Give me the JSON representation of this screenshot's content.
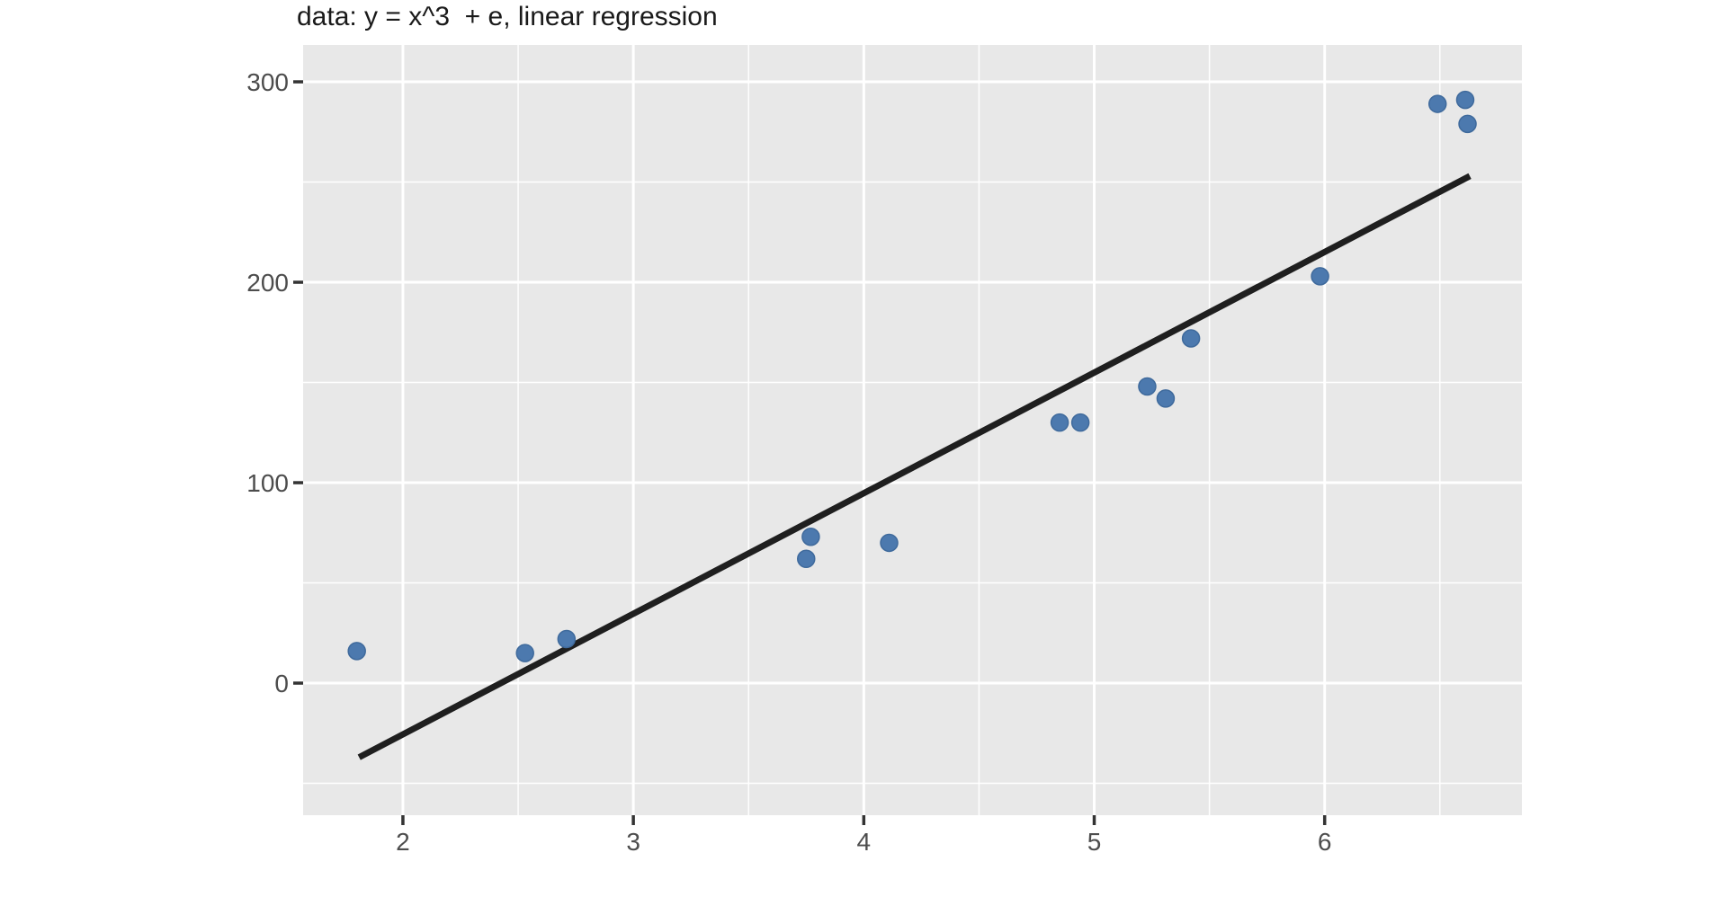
{
  "chart_data": {
    "type": "scatter",
    "title": "data: y = x^3  + e, linear regression",
    "xlabel": "",
    "ylabel": "",
    "x_domain": [
      1.567,
      6.856
    ],
    "y_domain": [
      -65.9,
      318.4
    ],
    "x_ticks": [
      2,
      3,
      4,
      5,
      6
    ],
    "y_ticks": [
      0,
      100,
      200,
      300
    ],
    "x_minor_gridlines": [
      2.5,
      3.5,
      4.5,
      5.5,
      6.5
    ],
    "y_minor_gridlines": [
      -50,
      50,
      150,
      250
    ],
    "grid": true,
    "legend_position": "none",
    "points": [
      {
        "x": 1.8,
        "y": 16
      },
      {
        "x": 2.53,
        "y": 15
      },
      {
        "x": 2.71,
        "y": 22
      },
      {
        "x": 3.75,
        "y": 62
      },
      {
        "x": 3.77,
        "y": 73
      },
      {
        "x": 4.11,
        "y": 70
      },
      {
        "x": 4.85,
        "y": 130
      },
      {
        "x": 4.94,
        "y": 130
      },
      {
        "x": 5.23,
        "y": 148
      },
      {
        "x": 5.31,
        "y": 142
      },
      {
        "x": 5.42,
        "y": 172
      },
      {
        "x": 5.98,
        "y": 203
      },
      {
        "x": 6.49,
        "y": 289
      },
      {
        "x": 6.61,
        "y": 291
      },
      {
        "x": 6.62,
        "y": 279
      }
    ],
    "regression_line": {
      "x1": 1.81,
      "y1": -37,
      "x2": 6.63,
      "y2": 253
    },
    "point_radius_px": 9.5,
    "colors": {
      "background": "#ffffff",
      "panel_bg": "#e8e8e8",
      "grid_major": "#ffffff",
      "grid_minor": "#ffffff",
      "point_fill": "#4c79ae",
      "point_stroke": "#3f6a9c",
      "regression": "#1f1f1f",
      "tick_mark": "#333333",
      "tick_label": "#4d4d4d",
      "title": "#1a1a1a"
    }
  }
}
